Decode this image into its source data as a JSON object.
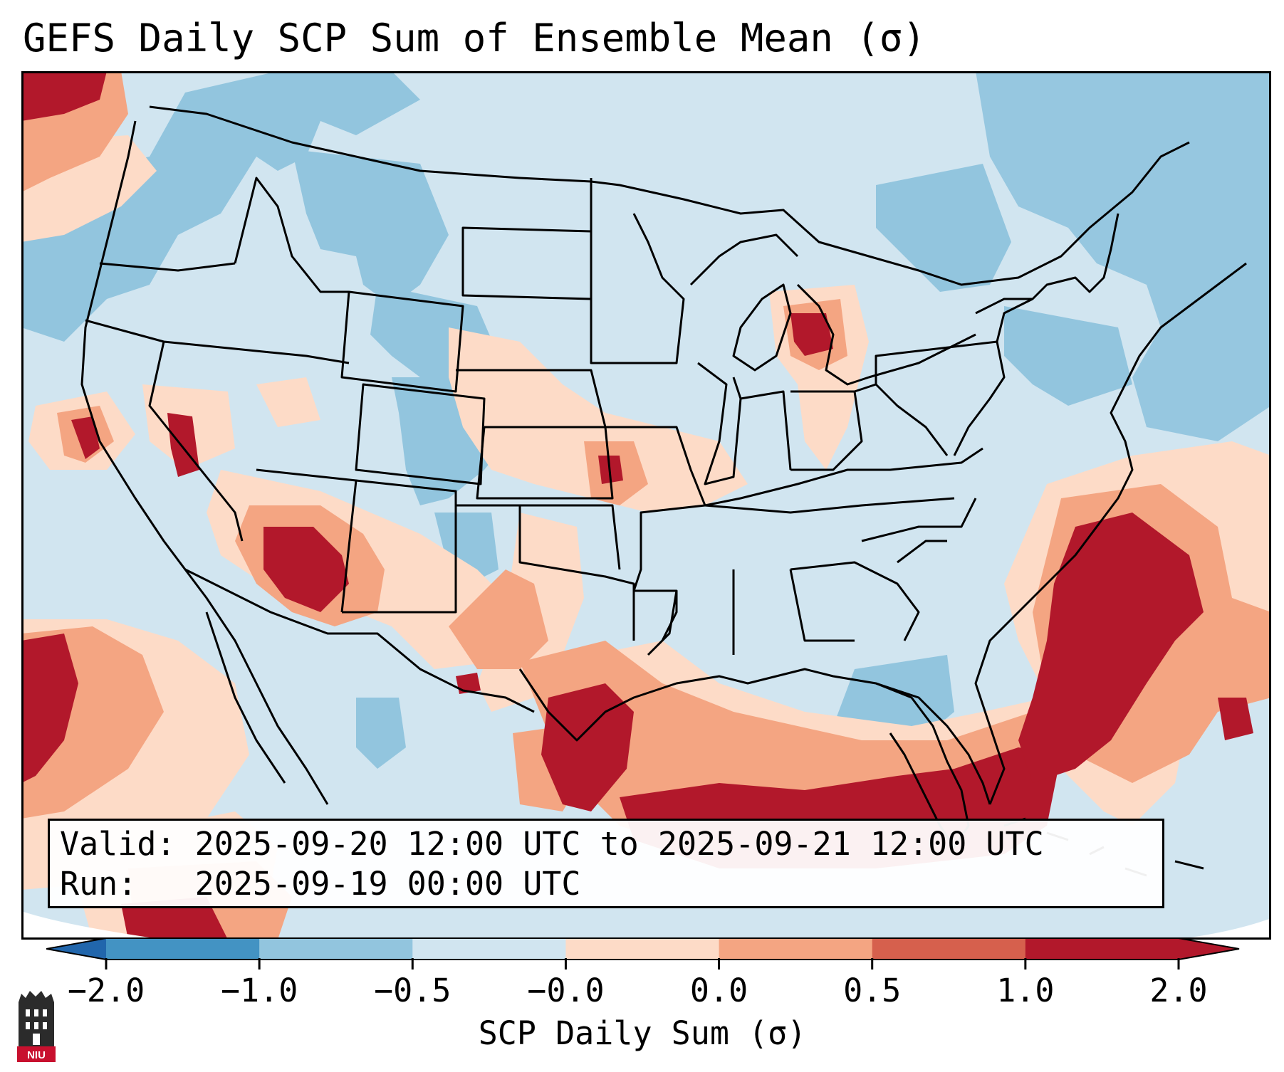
{
  "title": "GEFS Daily SCP Sum of Ensemble Mean (σ)",
  "infobox": {
    "valid": "Valid: 2025-09-20 12:00 UTC to 2025-09-21 12:00 UTC",
    "run": "Run:   2025-09-19 00:00 UTC"
  },
  "colorbar": {
    "label": "SCP Daily Sum (σ)",
    "ticks": [
      "−2.0",
      "−1.0",
      "−0.5",
      "−0.0",
      "0.0",
      "0.5",
      "1.0",
      "2.0"
    ],
    "colors": [
      "#4393c3",
      "#92c5de",
      "#d1e5f0",
      "#f7f7f7",
      "#fddbc7",
      "#f4a582",
      "#d6604d",
      "#b2182b"
    ]
  },
  "logo": {
    "text": "NIU"
  }
}
